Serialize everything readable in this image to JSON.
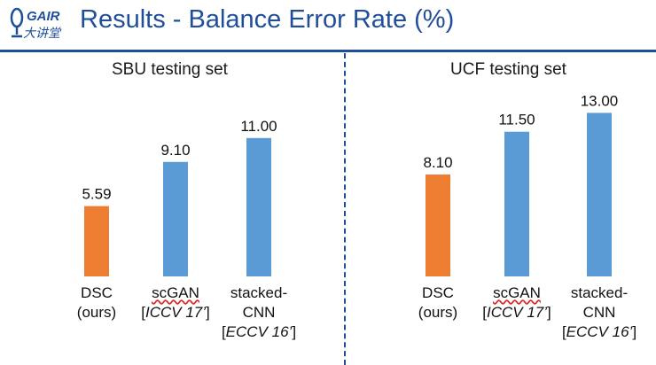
{
  "header": {
    "logo_text_top": "GAIR",
    "logo_text_bottom": "大讲堂",
    "title": "Results - Balance Error Rate (%)"
  },
  "colors": {
    "accent": "#1f4e9a",
    "ours": "#ed7d31",
    "baseline": "#5b9bd5"
  },
  "chart_data": [
    {
      "type": "bar",
      "title": "SBU testing set",
      "categories": [
        {
          "line1": "DSC",
          "line2": "(ours)",
          "line3": "",
          "highlight": true
        },
        {
          "line1": "scGAN",
          "line2": "[ICCV 17’]",
          "line3": "",
          "highlight": false
        },
        {
          "line1": "stacked-",
          "line2": "CNN",
          "line3": "[ECCV 16’]",
          "highlight": false
        }
      ],
      "values": [
        5.59,
        9.1,
        11.0
      ],
      "value_labels": [
        "5.59",
        "9.10",
        "11.00"
      ]
    },
    {
      "type": "bar",
      "title": "UCF testing set",
      "categories": [
        {
          "line1": "DSC",
          "line2": "(ours)",
          "line3": "",
          "highlight": true
        },
        {
          "line1": "scGAN",
          "line2": "[ICCV 17’]",
          "line3": "",
          "highlight": false
        },
        {
          "line1": "stacked-",
          "line2": "CNN",
          "line3": "[ECCV 16’]",
          "highlight": false
        }
      ],
      "values": [
        8.1,
        11.5,
        13.0
      ],
      "value_labels": [
        "8.10",
        "11.50",
        "13.00"
      ]
    }
  ]
}
